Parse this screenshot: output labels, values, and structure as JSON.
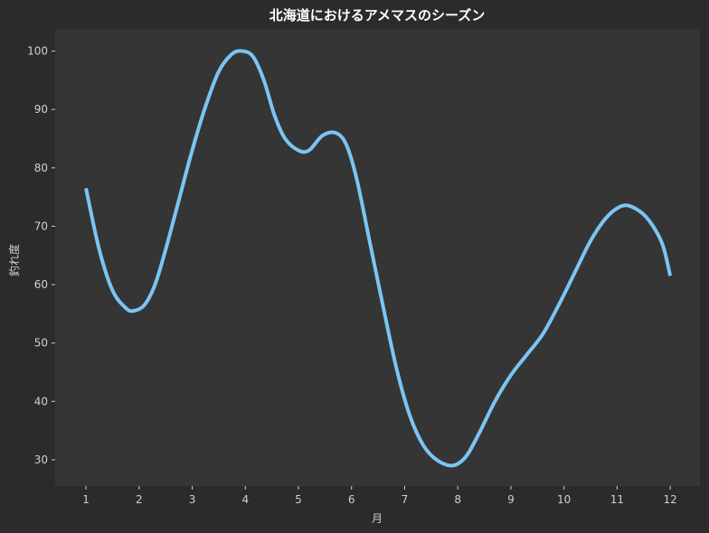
{
  "chart_data": {
    "type": "line",
    "title": "北海道におけるアメマスのシーズン",
    "xlabel": "月",
    "ylabel": "釣れ度",
    "x": [
      1,
      2,
      3,
      4,
      5,
      6,
      7,
      8,
      9,
      10,
      11,
      12
    ],
    "x_ticks": [
      "1",
      "2",
      "3",
      "4",
      "5",
      "6",
      "7",
      "8",
      "9",
      "10",
      "11",
      "12"
    ],
    "y_ticks": [
      "30",
      "40",
      "50",
      "60",
      "70",
      "80",
      "90",
      "100"
    ],
    "xlim": [
      0.42,
      12.56
    ],
    "ylim": [
      25.5,
      103.8
    ],
    "grid": false,
    "series": [
      {
        "color": "#7cc4f4",
        "points": [
          [
            1.0,
            76.5
          ],
          [
            1.25,
            66.0
          ],
          [
            1.5,
            59.0
          ],
          [
            1.75,
            56.0
          ],
          [
            1.9,
            55.5
          ],
          [
            2.1,
            56.5
          ],
          [
            2.3,
            60.0
          ],
          [
            2.5,
            66.0
          ],
          [
            2.75,
            74.5
          ],
          [
            3.0,
            83.0
          ],
          [
            3.25,
            90.5
          ],
          [
            3.5,
            96.5
          ],
          [
            3.75,
            99.5
          ],
          [
            3.95,
            100.0
          ],
          [
            4.15,
            99.0
          ],
          [
            4.35,
            95.0
          ],
          [
            4.55,
            89.0
          ],
          [
            4.75,
            85.0
          ],
          [
            5.0,
            83.0
          ],
          [
            5.2,
            83.0
          ],
          [
            5.45,
            85.5
          ],
          [
            5.7,
            86.0
          ],
          [
            5.9,
            84.0
          ],
          [
            6.1,
            78.0
          ],
          [
            6.35,
            67.0
          ],
          [
            6.6,
            56.0
          ],
          [
            6.85,
            45.5
          ],
          [
            7.1,
            37.5
          ],
          [
            7.35,
            32.5
          ],
          [
            7.6,
            30.0
          ],
          [
            7.9,
            29.0
          ],
          [
            8.15,
            30.5
          ],
          [
            8.4,
            34.5
          ],
          [
            8.7,
            40.0
          ],
          [
            9.0,
            44.5
          ],
          [
            9.3,
            48.0
          ],
          [
            9.6,
            51.5
          ],
          [
            9.9,
            56.5
          ],
          [
            10.2,
            62.0
          ],
          [
            10.5,
            67.5
          ],
          [
            10.8,
            71.5
          ],
          [
            11.1,
            73.5
          ],
          [
            11.35,
            73.0
          ],
          [
            11.6,
            71.0
          ],
          [
            11.85,
            67.0
          ],
          [
            12.0,
            61.5
          ]
        ]
      }
    ]
  }
}
